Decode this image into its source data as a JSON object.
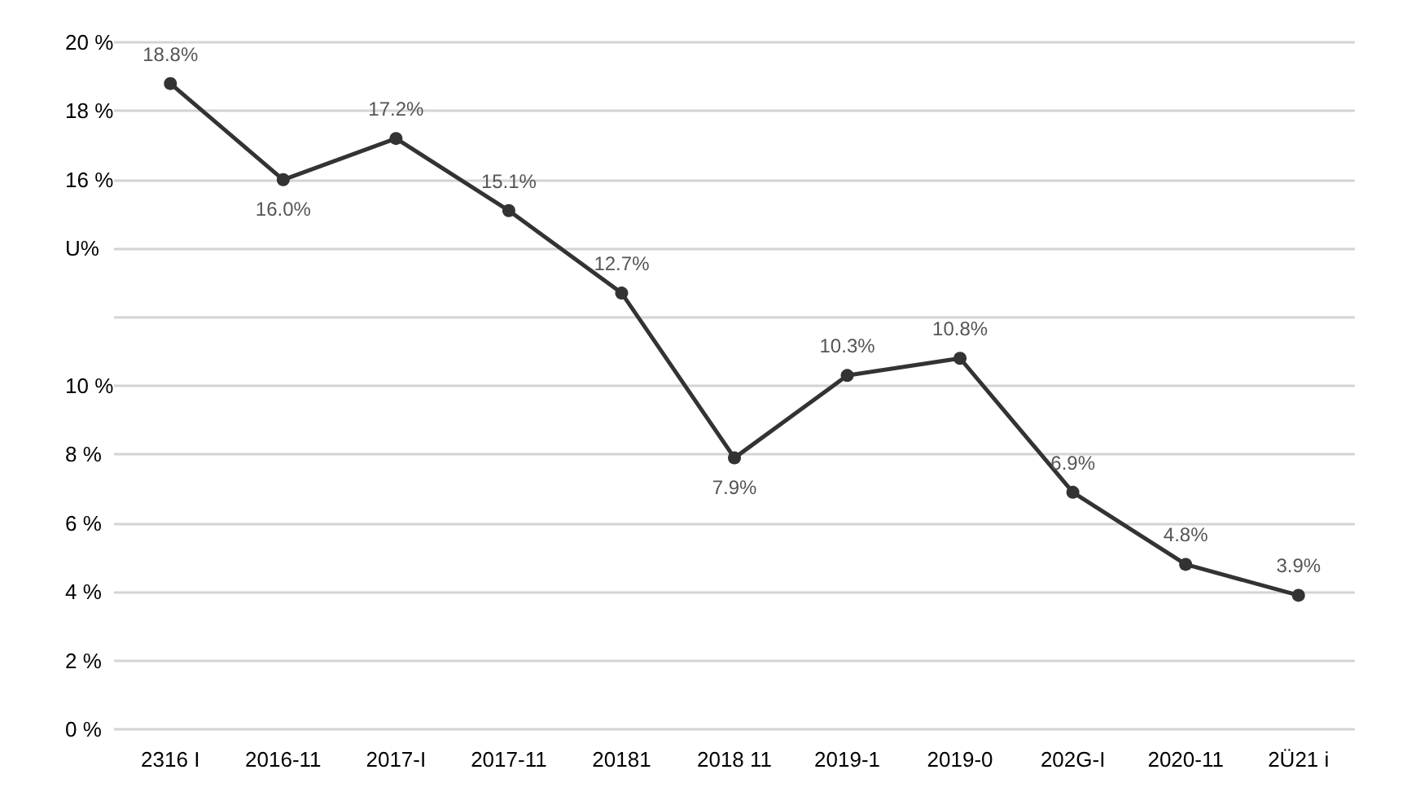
{
  "chart_data": {
    "type": "line",
    "categories": [
      "2316 I",
      "2016-11",
      "2017-I",
      "2017-11",
      "20181",
      "2018 11",
      "2019-1",
      "2019-0",
      "202G-I",
      "2020-11",
      "2Ü21 i"
    ],
    "series": [
      {
        "color": "#333333",
        "values": [
          18.8,
          16.0,
          17.2,
          15.1,
          12.7,
          7.9,
          10.3,
          10.8,
          6.9,
          4.8,
          3.9
        ],
        "value_labels": [
          "18.8%",
          "16.0%",
          "17.2%",
          "15.1%",
          "12.7%",
          "7.9%",
          "10.3%",
          "10.8%",
          "6.9%",
          "4.8%",
          "3.9%"
        ]
      }
    ],
    "ylim": [
      0,
      20
    ],
    "yticks": [
      {
        "value": 0,
        "label": "0 %"
      },
      {
        "value": 2,
        "label": "2 %"
      },
      {
        "value": 4,
        "label": "4 %"
      },
      {
        "value": 6,
        "label": "6 %"
      },
      {
        "value": 8,
        "label": "8 %"
      },
      {
        "value": 10,
        "label": "10 %"
      },
      {
        "value": 12,
        "label": null
      },
      {
        "value": 14,
        "label": "U%"
      },
      {
        "value": 16,
        "label": "16 %"
      },
      {
        "value": 18,
        "label": "18 %"
      },
      {
        "value": 20,
        "label": "20 %"
      }
    ],
    "grid": "y",
    "marker": "circle",
    "line_style": "solid"
  }
}
